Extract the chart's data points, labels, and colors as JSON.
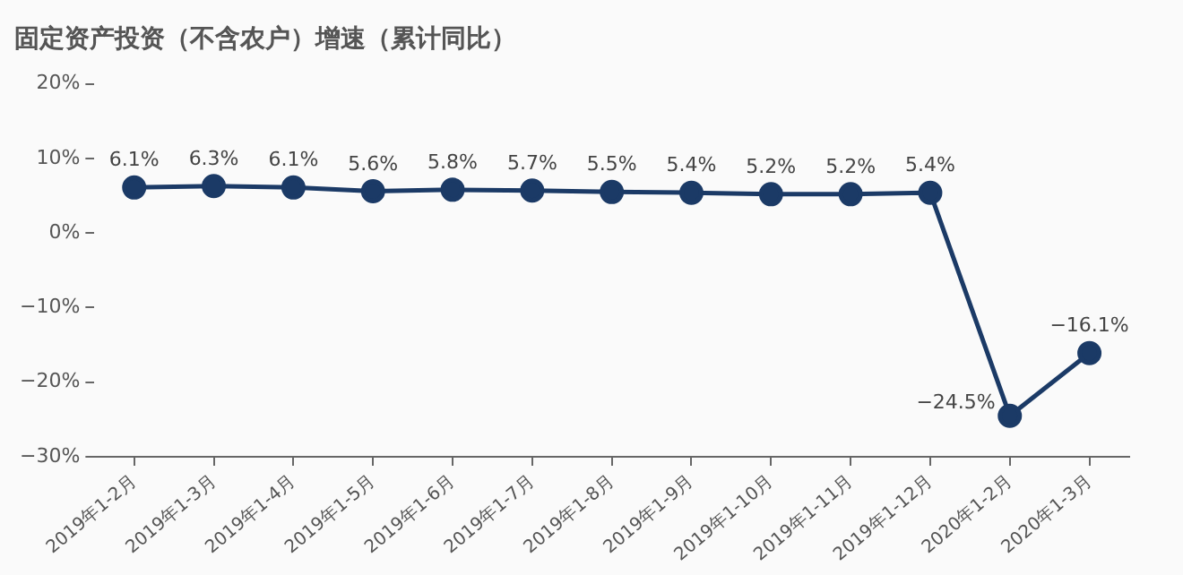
{
  "chart_data": {
    "type": "line",
    "title": "固定资产投资（不含农户）增速（累计同比）",
    "categories": [
      "2019年1-2月",
      "2019年1-3月",
      "2019年1-4月",
      "2019年1-5月",
      "2019年1-6月",
      "2019年1-7月",
      "2019年1-8月",
      "2019年1-9月",
      "2019年1-10月",
      "2019年1-11月",
      "2019年1-12月",
      "2020年1-2月",
      "2020年1-3月"
    ],
    "series": [
      {
        "color": "#1b3a66",
        "values": [
          6.1,
          6.3,
          6.1,
          5.6,
          5.8,
          5.7,
          5.5,
          5.4,
          5.2,
          5.2,
          5.4,
          -24.5,
          -16.1
        ],
        "value_labels": [
          "6.1%",
          "6.3%",
          "6.1%",
          "5.6%",
          "5.8%",
          "5.7%",
          "5.5%",
          "5.4%",
          "5.2%",
          "5.2%",
          "5.4%",
          "−24.5%",
          "−16.1%"
        ]
      }
    ],
    "ylim": [
      -30,
      20
    ],
    "yticks": [
      {
        "value": -30,
        "label": "−30%"
      },
      {
        "value": -20,
        "label": "−20%"
      },
      {
        "value": -10,
        "label": "−10%"
      },
      {
        "value": 0,
        "label": "0%"
      },
      {
        "value": 10,
        "label": "10%"
      },
      {
        "value": 20,
        "label": "20%"
      }
    ],
    "grid": false,
    "legend": false,
    "marker": "circle",
    "line_style": "solid"
  }
}
